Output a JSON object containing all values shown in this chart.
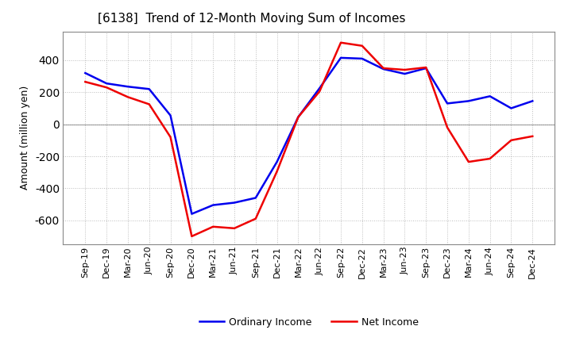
{
  "title": "[6138]  Trend of 12-Month Moving Sum of Incomes",
  "ylabel": "Amount (million yen)",
  "x_labels": [
    "Sep-19",
    "Dec-19",
    "Mar-20",
    "Jun-20",
    "Sep-20",
    "Dec-20",
    "Mar-21",
    "Jun-21",
    "Sep-21",
    "Dec-21",
    "Mar-22",
    "Jun-22",
    "Sep-22",
    "Dec-22",
    "Mar-23",
    "Jun-23",
    "Sep-23",
    "Dec-23",
    "Mar-24",
    "Jun-24",
    "Sep-24",
    "Dec-24"
  ],
  "ordinary_income": [
    320,
    255,
    235,
    220,
    55,
    -560,
    -505,
    -490,
    -460,
    -235,
    45,
    225,
    415,
    410,
    345,
    315,
    350,
    130,
    145,
    175,
    100,
    145
  ],
  "net_income": [
    265,
    230,
    170,
    125,
    -80,
    -700,
    -640,
    -650,
    -590,
    -295,
    45,
    205,
    510,
    490,
    350,
    340,
    355,
    -20,
    -235,
    -215,
    -100,
    -75
  ],
  "ordinary_color": "#0000EE",
  "net_color": "#EE0000",
  "ylim": [
    -750,
    580
  ],
  "yticks": [
    -600,
    -400,
    -200,
    0,
    200,
    400
  ],
  "background_color": "#FFFFFF",
  "plot_bg_color": "#FFFFFF",
  "grid_color": "#BBBBBB",
  "line_width": 1.8,
  "title_fontsize": 11,
  "ylabel_fontsize": 9,
  "tick_fontsize": 8,
  "legend_fontsize": 9
}
